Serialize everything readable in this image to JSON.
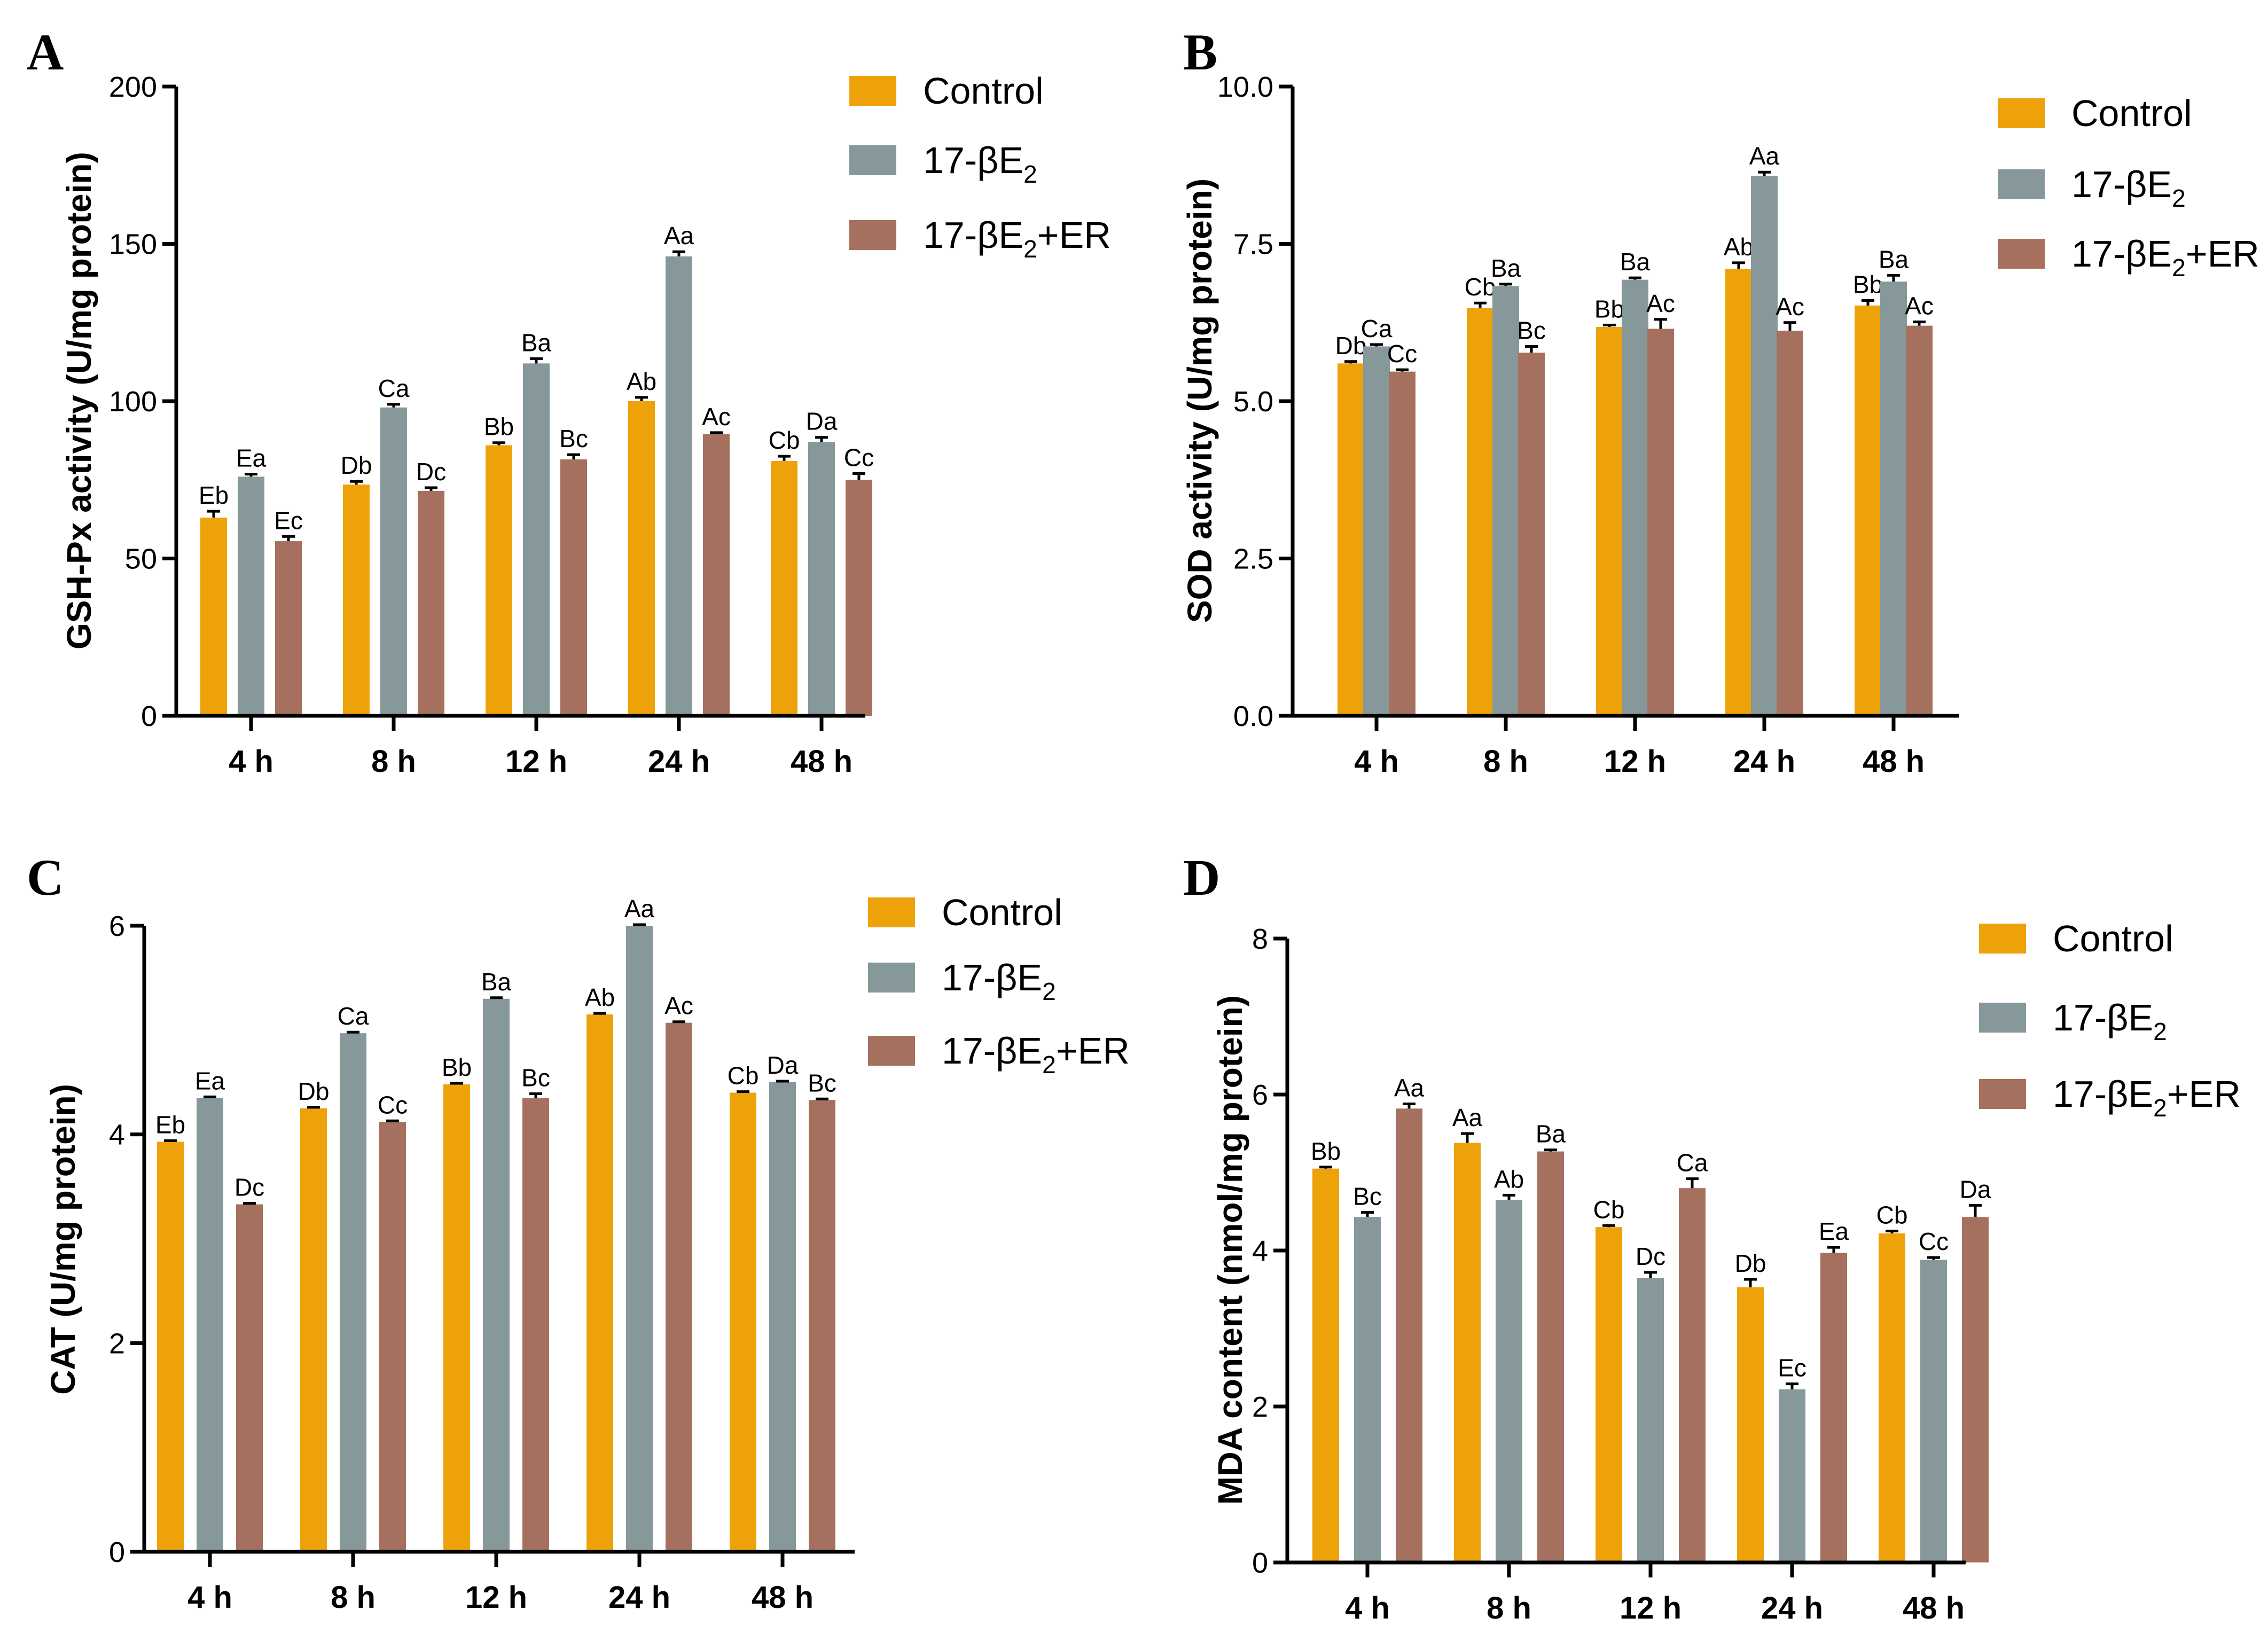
{
  "colors": {
    "control": "#EEA20A",
    "e2": "#86989A",
    "e2er": "#A5705D"
  },
  "chart_data": [
    {
      "panel": "A",
      "type": "bar",
      "ylabel": "GSH-Px activity (U/mg protein)",
      "ylim": [
        0,
        200
      ],
      "yticks": [
        "0",
        "50",
        "100",
        "150",
        "200"
      ],
      "categories": [
        "4 h",
        "8 h",
        "12 h",
        "24 h",
        "48 h"
      ],
      "legend": {
        "control": "Control",
        "e2_main": "17-βE",
        "e2_sub": "2",
        "e2er_main": "17-βE",
        "e2er_sub": "2",
        "e2er_suffix": "+ER"
      },
      "series": [
        {
          "name": "Control",
          "values": [
            63,
            73.5,
            86,
            100,
            81
          ],
          "errors": [
            2,
            1,
            0.8,
            1.2,
            1.5
          ],
          "labels": [
            "Eb",
            "Db",
            "Bb",
            "Ab",
            "Cb"
          ]
        },
        {
          "name": "17-βE2",
          "values": [
            76,
            98,
            112,
            146,
            87
          ],
          "errors": [
            0.8,
            1,
            1.5,
            1.5,
            1.5
          ],
          "labels": [
            "Ea",
            "Ca",
            "Ba",
            "Aa",
            "Da"
          ]
        },
        {
          "name": "17-βE2+ER",
          "values": [
            55.5,
            71.5,
            81.5,
            89.5,
            75
          ],
          "errors": [
            1.5,
            1,
            1.5,
            0.5,
            2
          ],
          "labels": [
            "Ec",
            "Dc",
            "Bc",
            "Ac",
            "Cc"
          ]
        }
      ]
    },
    {
      "panel": "B",
      "type": "bar",
      "ylabel": "SOD activity (U/mg protein)",
      "ylim": [
        0,
        10
      ],
      "yticks": [
        "0.0",
        "2.5",
        "5.0",
        "7.5",
        "10.0"
      ],
      "categories": [
        "4 h",
        "8 h",
        "12 h",
        "24 h",
        "48 h"
      ],
      "legend": {
        "control": "Control",
        "e2_main": "17-βE",
        "e2_sub": "2",
        "e2er_main": "17-βE",
        "e2er_sub": "2",
        "e2er_suffix": "+ER"
      },
      "series": [
        {
          "name": "Control",
          "values": [
            5.6,
            6.48,
            6.18,
            7.1,
            6.52
          ],
          "errors": [
            0.03,
            0.08,
            0.03,
            0.1,
            0.08
          ],
          "labels": [
            "Db",
            "Cb",
            "Bb",
            "Ab",
            "Bb"
          ]
        },
        {
          "name": "17-βE2",
          "values": [
            5.87,
            6.83,
            6.93,
            8.58,
            6.9
          ],
          "errors": [
            0.03,
            0.03,
            0.03,
            0.06,
            0.1
          ],
          "labels": [
            "Ca",
            "Ba",
            "Ba",
            "Aa",
            "Ba"
          ]
        },
        {
          "name": "17-βE2+ER",
          "values": [
            5.47,
            5.77,
            6.15,
            6.12,
            6.2
          ],
          "errors": [
            0.03,
            0.1,
            0.15,
            0.13,
            0.06
          ],
          "labels": [
            "Cc",
            "Bc",
            "Ac",
            "Ac",
            "Ac"
          ]
        }
      ]
    },
    {
      "panel": "C",
      "type": "bar",
      "ylabel": "CAT (U/mg protein)",
      "ylim": [
        0,
        6
      ],
      "yticks": [
        "0",
        "2",
        "4",
        "6"
      ],
      "categories": [
        "4 h",
        "8 h",
        "12 h",
        "24 h",
        "48 h"
      ],
      "legend": {
        "control": "Control",
        "e2_main": "17-βE",
        "e2_sub": "2",
        "e2er_main": "17-βE",
        "e2er_sub": "2",
        "e2er_suffix": "+ER"
      },
      "series": [
        {
          "name": "Control",
          "values": [
            3.93,
            4.25,
            4.48,
            5.15,
            4.4
          ],
          "errors": [
            0.01,
            0.01,
            0.01,
            0.01,
            0.01
          ],
          "labels": [
            "Eb",
            "Db",
            "Bb",
            "Ab",
            "Cb"
          ]
        },
        {
          "name": "17-βE2",
          "values": [
            4.35,
            4.97,
            5.3,
            6.0,
            4.5
          ],
          "errors": [
            0.01,
            0.01,
            0.01,
            0.01,
            0.01
          ],
          "labels": [
            "Ea",
            "Ca",
            "Ba",
            "Aa",
            "Da"
          ]
        },
        {
          "name": "17-βE2+ER",
          "values": [
            3.33,
            4.12,
            4.35,
            5.07,
            4.33
          ],
          "errors": [
            0.01,
            0.01,
            0.04,
            0.01,
            0.01
          ],
          "labels": [
            "Dc",
            "Cc",
            "Bc",
            "Ac",
            "Bc"
          ]
        }
      ]
    },
    {
      "panel": "D",
      "type": "bar",
      "ylabel": "MDA content (nmol/mg protein)",
      "ylim": [
        0,
        8
      ],
      "yticks": [
        "0",
        "2",
        "4",
        "6",
        "8"
      ],
      "categories": [
        "4 h",
        "8 h",
        "12 h",
        "24 h",
        "48 h"
      ],
      "legend": {
        "control": "Control",
        "e2_main": "17-βE",
        "e2_sub": "2",
        "e2er_main": "17-βE",
        "e2er_sub": "2",
        "e2er_suffix": "+ER"
      },
      "series": [
        {
          "name": "Control",
          "values": [
            5.05,
            5.38,
            4.3,
            3.53,
            4.22
          ],
          "errors": [
            0.02,
            0.12,
            0.02,
            0.1,
            0.03
          ],
          "labels": [
            "Bb",
            "Aa",
            "Cb",
            "Db",
            "Cb"
          ]
        },
        {
          "name": "17-βE2",
          "values": [
            4.43,
            4.65,
            3.65,
            2.22,
            3.88
          ],
          "errors": [
            0.06,
            0.06,
            0.07,
            0.07,
            0.03
          ],
          "labels": [
            "Bc",
            "Ab",
            "Dc",
            "Ec",
            "Cc"
          ]
        },
        {
          "name": "17-βE2+ER",
          "values": [
            5.82,
            5.27,
            4.8,
            3.97,
            4.43
          ],
          "errors": [
            0.06,
            0.02,
            0.12,
            0.07,
            0.15
          ],
          "labels": [
            "Aa",
            "Ba",
            "Ca",
            "Ea",
            "Da"
          ]
        }
      ]
    }
  ]
}
